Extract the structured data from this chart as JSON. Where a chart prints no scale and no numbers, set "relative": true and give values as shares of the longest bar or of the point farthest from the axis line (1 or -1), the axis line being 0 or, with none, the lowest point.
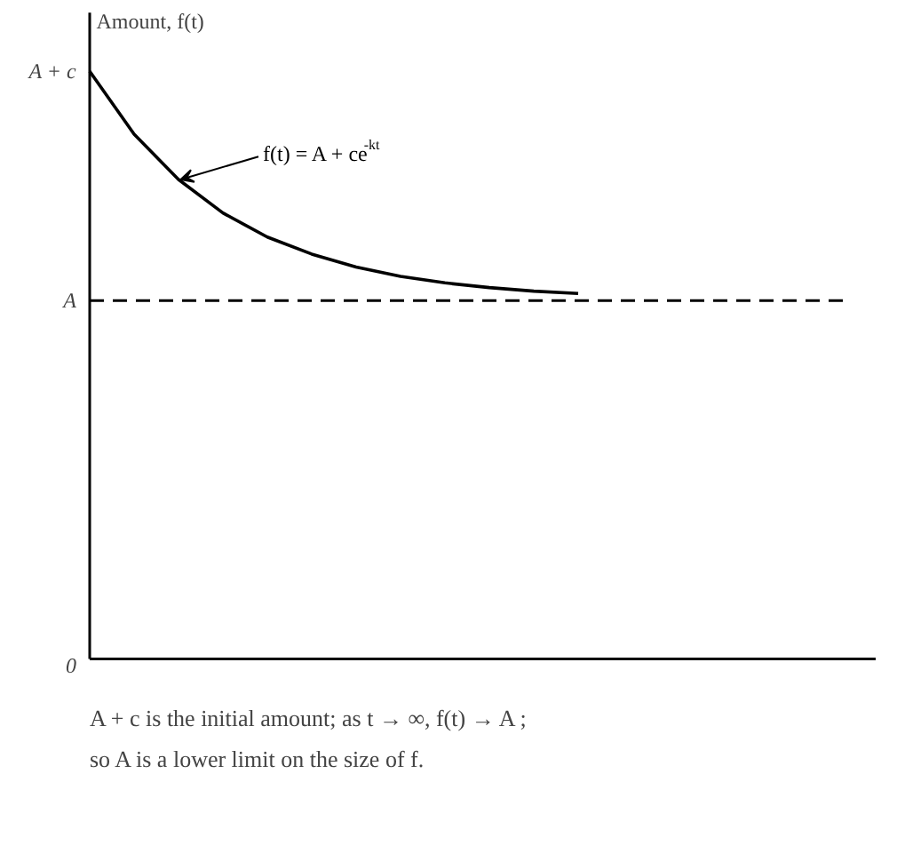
{
  "chart_data": {
    "type": "line",
    "relative": true,
    "ylabel": "Amount, f(t)",
    "categories": [
      null,
      null,
      null,
      null,
      null,
      null,
      null,
      null,
      null,
      null,
      null,
      null,
      null,
      null,
      null,
      null,
      null,
      null
    ],
    "series": [
      {
        "color": "#000000",
        "values": [
          1.0,
          0.893,
          0.816,
          0.759,
          0.718,
          0.689,
          0.667,
          0.651,
          0.64,
          0.632,
          0.626,
          0.622,
          null,
          null,
          null,
          null,
          null,
          null
        ]
      }
    ],
    "ref_lines": [
      {
        "axis": "y",
        "value": 0.61,
        "label": "A",
        "color": "#000000",
        "line_style": "dashed"
      }
    ],
    "annotations": [
      "A + c",
      "0",
      "f(t) = A + ce$^{-kt}$",
      "A + c is the initial amount; as t → ∞, f(t) → A ;\nso A is a lower limit on the size of f."
    ],
    "grid": false,
    "marker": "none",
    "line_style": "solid"
  }
}
